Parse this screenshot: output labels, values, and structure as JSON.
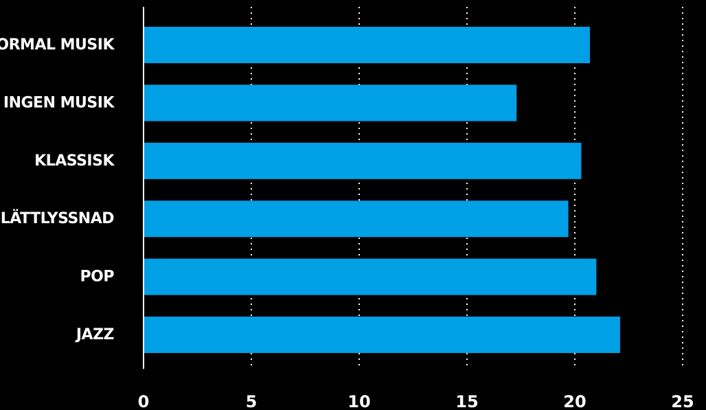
{
  "colors": {
    "background": "#000000",
    "bar": "#00a0e6",
    "text": "#ffffff",
    "grid": "#ffffff"
  },
  "chart_data": {
    "type": "bar",
    "orientation": "horizontal",
    "categories": [
      "NORMAL MUSIK",
      "INGEN MUSIK",
      "KLASSISK",
      "LÄTTLYSSNAD",
      "POP",
      "JAZZ"
    ],
    "values": [
      20.7,
      17.3,
      20.3,
      19.7,
      21.0,
      22.1
    ],
    "xlim": [
      0,
      25
    ],
    "xticks": [
      "0",
      "5",
      "10",
      "15",
      "20",
      "25"
    ],
    "grid": "vertical dotted",
    "title": "",
    "xlabel": "",
    "ylabel": ""
  }
}
